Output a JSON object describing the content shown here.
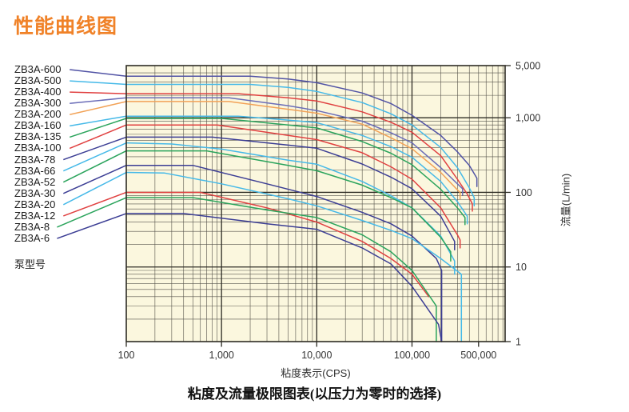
{
  "title": "性能曲线图",
  "legend": {
    "caption": "泵型号"
  },
  "colors": {
    "accent": "#F08228",
    "plot_bg": "#FBF7DE",
    "grid_major": "#2e2c24",
    "grid_minor": "#55524a",
    "axis_text": "#333333"
  },
  "chart_data": {
    "type": "line",
    "title": "性能曲线图",
    "xlabel": "粘度表示(CPS)",
    "ylabel": "流量(L/min)",
    "caption": "粘度及流量极限图表(以压力为零时的选择)",
    "x_scale": "log",
    "y_scale": "log",
    "xlim": [
      100,
      950000
    ],
    "ylim": [
      1,
      5000
    ],
    "grid": true,
    "legend_position": "left",
    "x_ticks": [
      {
        "value": 100,
        "label": "100"
      },
      {
        "value": 1000,
        "label": "1,000"
      },
      {
        "value": 10000,
        "label": "10,000"
      },
      {
        "value": 100000,
        "label": "100,000"
      },
      {
        "value": 500000,
        "label": "500,000"
      }
    ],
    "y_ticks": [
      {
        "value": 5000,
        "label": "5,000"
      },
      {
        "value": 1000,
        "label": "1,000"
      },
      {
        "value": 100,
        "label": "100"
      },
      {
        "value": 10,
        "label": "10"
      },
      {
        "value": 1,
        "label": "1"
      }
    ],
    "series": [
      {
        "name": "ZB3A-600",
        "color": "#5153a5",
        "points": [
          [
            100,
            3600
          ],
          [
            2000,
            3600
          ],
          [
            5000,
            3300
          ],
          [
            10000,
            2950
          ],
          [
            30000,
            2150
          ],
          [
            60000,
            1550
          ],
          [
            100000,
            1080
          ],
          [
            200000,
            580
          ],
          [
            300000,
            350
          ],
          [
            400000,
            230
          ],
          [
            480000,
            155
          ],
          [
            480000,
            120
          ]
        ]
      },
      {
        "name": "ZB3A-500",
        "color": "#45b9e8",
        "points": [
          [
            100,
            2800
          ],
          [
            2000,
            2800
          ],
          [
            5000,
            2550
          ],
          [
            10000,
            2250
          ],
          [
            30000,
            1600
          ],
          [
            60000,
            1130
          ],
          [
            100000,
            800
          ],
          [
            200000,
            400
          ],
          [
            300000,
            215
          ],
          [
            400000,
            115
          ],
          [
            450000,
            85
          ],
          [
            450000,
            66
          ]
        ]
      },
      {
        "name": "ZB3A-400",
        "color": "#e04040",
        "points": [
          [
            100,
            2100
          ],
          [
            1500,
            2100
          ],
          [
            5000,
            1850
          ],
          [
            10000,
            1680
          ],
          [
            30000,
            1200
          ],
          [
            60000,
            870
          ],
          [
            100000,
            640
          ],
          [
            200000,
            310
          ],
          [
            300000,
            150
          ],
          [
            380000,
            95
          ],
          [
            430000,
            70
          ],
          [
            430000,
            56
          ]
        ]
      },
      {
        "name": "ZB3A-300",
        "color": "#6b6db8",
        "points": [
          [
            100,
            1850
          ],
          [
            1200,
            1850
          ],
          [
            5000,
            1450
          ],
          [
            10000,
            1250
          ],
          [
            30000,
            900
          ],
          [
            60000,
            630
          ],
          [
            100000,
            460
          ],
          [
            200000,
            215
          ],
          [
            300000,
            130
          ],
          [
            340000,
            112
          ],
          [
            340000,
            92
          ]
        ]
      },
      {
        "name": "ZB3A-200",
        "color": "#f2a257",
        "points": [
          [
            100,
            1650
          ],
          [
            1200,
            1650
          ],
          [
            5000,
            1300
          ],
          [
            10000,
            1150
          ],
          [
            30000,
            820
          ],
          [
            60000,
            540
          ],
          [
            100000,
            385
          ],
          [
            200000,
            185
          ],
          [
            300000,
            108
          ],
          [
            320000,
            100
          ],
          [
            320000,
            82
          ]
        ]
      },
      {
        "name": "ZB3A-160",
        "color": "#45b9e8",
        "points": [
          [
            100,
            1050
          ],
          [
            1500,
            1050
          ],
          [
            5000,
            930
          ],
          [
            10000,
            860
          ],
          [
            30000,
            580
          ],
          [
            60000,
            410
          ],
          [
            100000,
            295
          ],
          [
            200000,
            140
          ],
          [
            300000,
            75
          ],
          [
            380000,
            48
          ],
          [
            380000,
            38
          ]
        ]
      },
      {
        "name": "ZB3A-135",
        "color": "#2ba45c",
        "points": [
          [
            100,
            980
          ],
          [
            1000,
            980
          ],
          [
            5000,
            800
          ],
          [
            10000,
            730
          ],
          [
            30000,
            480
          ],
          [
            60000,
            335
          ],
          [
            100000,
            235
          ],
          [
            200000,
            110
          ],
          [
            300000,
            62
          ],
          [
            360000,
            46
          ],
          [
            360000,
            37
          ]
        ]
      },
      {
        "name": "ZB3A-100",
        "color": "#e04040",
        "points": [
          [
            100,
            800
          ],
          [
            900,
            800
          ],
          [
            5000,
            580
          ],
          [
            10000,
            510
          ],
          [
            30000,
            340
          ],
          [
            60000,
            220
          ],
          [
            100000,
            150
          ],
          [
            200000,
            62
          ],
          [
            300000,
            27
          ],
          [
            320000,
            23
          ],
          [
            320000,
            18
          ]
        ]
      },
      {
        "name": "ZB3A-78",
        "color": "#3b3d94",
        "points": [
          [
            100,
            550
          ],
          [
            800,
            550
          ],
          [
            5000,
            430
          ],
          [
            10000,
            390
          ],
          [
            30000,
            240
          ],
          [
            60000,
            160
          ],
          [
            100000,
            112
          ],
          [
            200000,
            48
          ],
          [
            280000,
            22
          ],
          [
            280000,
            17
          ]
        ]
      },
      {
        "name": "ZB3A-66",
        "color": "#45b9e8",
        "points": [
          [
            100,
            460
          ],
          [
            300,
            445
          ],
          [
            1000,
            380
          ],
          [
            5000,
            270
          ],
          [
            10000,
            238
          ],
          [
            30000,
            140
          ],
          [
            60000,
            90
          ],
          [
            100000,
            62
          ],
          [
            200000,
            26
          ],
          [
            280000,
            12
          ],
          [
            280000,
            8
          ]
        ]
      },
      {
        "name": "ZB3A-52",
        "color": "#2ba45c",
        "points": [
          [
            100,
            360
          ],
          [
            700,
            360
          ],
          [
            5000,
            230
          ],
          [
            10000,
            195
          ],
          [
            30000,
            125
          ],
          [
            60000,
            85
          ],
          [
            100000,
            62
          ],
          [
            200000,
            25
          ],
          [
            255000,
            16
          ],
          [
            255000,
            12
          ]
        ]
      },
      {
        "name": "ZB3A-30",
        "color": "#3b3d94",
        "points": [
          [
            100,
            230
          ],
          [
            500,
            230
          ],
          [
            3000,
            130
          ],
          [
            10000,
            88
          ],
          [
            30000,
            54
          ],
          [
            60000,
            38
          ],
          [
            100000,
            26
          ],
          [
            180000,
            13
          ],
          [
            205000,
            9
          ],
          [
            205000,
            1
          ]
        ]
      },
      {
        "name": "ZB3A-20",
        "color": "#45b9e8",
        "points": [
          [
            100,
            185
          ],
          [
            250,
            182
          ],
          [
            1000,
            130
          ],
          [
            5000,
            82
          ],
          [
            10000,
            66
          ],
          [
            30000,
            42
          ],
          [
            60000,
            31
          ],
          [
            100000,
            24
          ],
          [
            200000,
            13
          ],
          [
            330000,
            8
          ],
          [
            330000,
            1
          ]
        ]
      },
      {
        "name": "ZB3A-12",
        "color": "#e04040",
        "points": [
          [
            100,
            100
          ],
          [
            600,
            100
          ],
          [
            3000,
            62
          ],
          [
            10000,
            40
          ],
          [
            30000,
            22
          ],
          [
            60000,
            13
          ],
          [
            100000,
            8
          ],
          [
            150000,
            4
          ]
        ]
      },
      {
        "name": "ZB3A-8",
        "color": "#2ba45c",
        "points": [
          [
            100,
            85
          ],
          [
            500,
            85
          ],
          [
            3000,
            58
          ],
          [
            10000,
            46
          ],
          [
            30000,
            27
          ],
          [
            60000,
            16
          ],
          [
            100000,
            9
          ],
          [
            180000,
            3
          ],
          [
            180000,
            1
          ]
        ]
      },
      {
        "name": "ZB3A-6",
        "color": "#3b3d94",
        "points": [
          [
            100,
            52
          ],
          [
            400,
            52
          ],
          [
            3000,
            38
          ],
          [
            10000,
            32
          ],
          [
            30000,
            18
          ],
          [
            60000,
            11
          ],
          [
            100000,
            5.5
          ],
          [
            190000,
            1.7
          ],
          [
            205000,
            1
          ]
        ]
      }
    ]
  }
}
